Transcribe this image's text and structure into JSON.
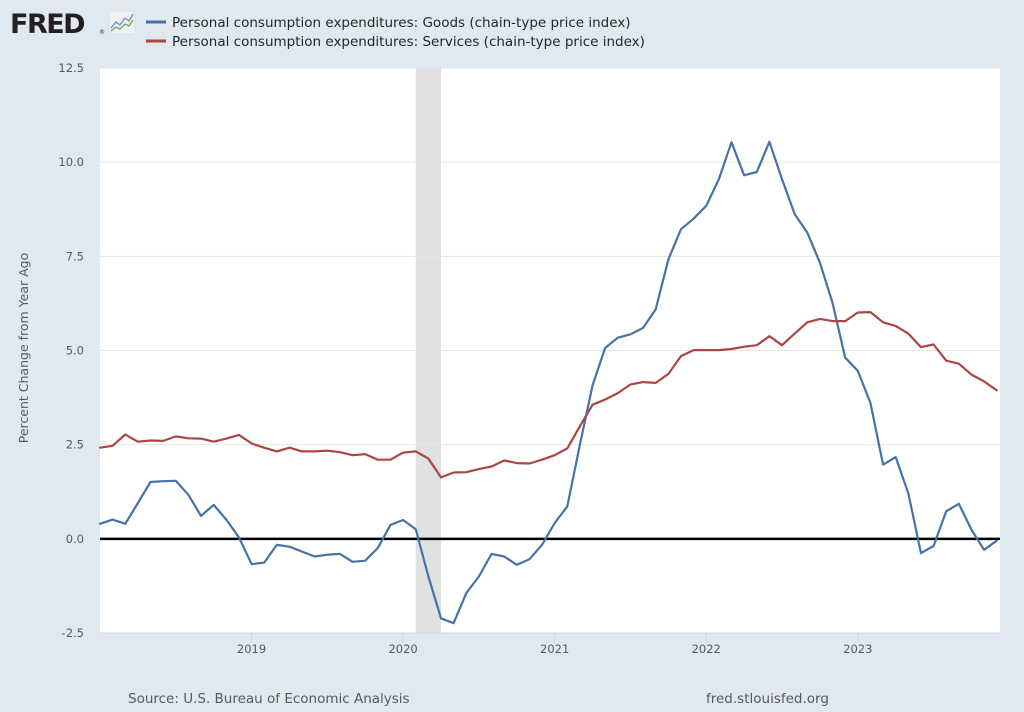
{
  "logo": {
    "text": "FRED",
    "registered_mark": "®",
    "icon": "fred-graph-icon"
  },
  "colors": {
    "background": "#e1e9f0",
    "plot_background": "#ffffff",
    "goods": "#4572a7",
    "services": "#aa4643",
    "recession": "#e1e1e1",
    "zero_line": "#000000",
    "grid": "#e6e6e6"
  },
  "footer": {
    "source": "Source: U.S. Bureau of Economic Analysis",
    "url": "fred.stlouisfed.org"
  },
  "chart_data": {
    "type": "line",
    "title": "",
    "xlabel": "",
    "ylabel": "Percent Change from Year Ago",
    "ylim": [
      -2.5,
      12.5
    ],
    "yticks": [
      "12.5",
      "10.0",
      "7.5",
      "5.0",
      "2.5",
      "0.0",
      "-2.5"
    ],
    "ytick_values": [
      12.5,
      10.0,
      7.5,
      5.0,
      2.5,
      0.0,
      -2.5
    ],
    "xlim": [
      "2018-01",
      "2023-12"
    ],
    "xticks": [
      "2019",
      "2020",
      "2021",
      "2022",
      "2023"
    ],
    "grid": true,
    "legend_placement": "top-left",
    "x": [
      "2018-01",
      "2018-02",
      "2018-03",
      "2018-04",
      "2018-05",
      "2018-06",
      "2018-07",
      "2018-08",
      "2018-09",
      "2018-10",
      "2018-11",
      "2018-12",
      "2019-01",
      "2019-02",
      "2019-03",
      "2019-04",
      "2019-05",
      "2019-06",
      "2019-07",
      "2019-08",
      "2019-09",
      "2019-10",
      "2019-11",
      "2019-12",
      "2020-01",
      "2020-02",
      "2020-03",
      "2020-04",
      "2020-05",
      "2020-06",
      "2020-07",
      "2020-08",
      "2020-09",
      "2020-10",
      "2020-11",
      "2020-12",
      "2021-01",
      "2021-02",
      "2021-03",
      "2021-04",
      "2021-05",
      "2021-06",
      "2021-07",
      "2021-08",
      "2021-09",
      "2021-10",
      "2021-11",
      "2021-12",
      "2022-01",
      "2022-02",
      "2022-03",
      "2022-04",
      "2022-05",
      "2022-06",
      "2022-07",
      "2022-08",
      "2022-09",
      "2022-10",
      "2022-11",
      "2022-12",
      "2023-01",
      "2023-02",
      "2023-03",
      "2023-04",
      "2023-05",
      "2023-06",
      "2023-07",
      "2023-08",
      "2023-09",
      "2023-10",
      "2023-11",
      "2023-12"
    ],
    "series": [
      {
        "name": "Personal consumption expenditures: Goods (chain-type price index)",
        "color": "#4572a7",
        "values": [
          0.4,
          0.51,
          0.4,
          0.95,
          1.51,
          1.53,
          1.54,
          1.17,
          0.61,
          0.9,
          0.51,
          0.04,
          -0.67,
          -0.63,
          -0.16,
          -0.21,
          -0.34,
          -0.47,
          -0.42,
          -0.4,
          -0.61,
          -0.58,
          -0.24,
          0.37,
          0.5,
          0.25,
          -1.0,
          -2.11,
          -2.24,
          -1.44,
          -1.0,
          -0.4,
          -0.47,
          -0.69,
          -0.54,
          -0.16,
          0.42,
          0.86,
          2.5,
          4.08,
          5.07,
          5.34,
          5.43,
          5.6,
          6.09,
          7.42,
          8.22,
          8.5,
          8.84,
          9.55,
          10.53,
          9.65,
          9.74,
          10.54,
          9.55,
          8.62,
          8.13,
          7.33,
          6.27,
          4.81,
          4.46,
          3.61,
          1.97,
          2.17,
          1.21,
          -0.38,
          -0.19,
          0.73,
          0.93,
          0.24,
          -0.29,
          -0.05
        ]
      },
      {
        "name": "Personal consumption expenditures: Services (chain-type price index)",
        "color": "#aa4643",
        "values": [
          2.42,
          2.47,
          2.77,
          2.58,
          2.61,
          2.6,
          2.72,
          2.67,
          2.66,
          2.58,
          2.66,
          2.76,
          2.53,
          2.42,
          2.32,
          2.42,
          2.32,
          2.32,
          2.34,
          2.3,
          2.22,
          2.25,
          2.1,
          2.1,
          2.29,
          2.32,
          2.13,
          1.63,
          1.76,
          1.77,
          1.85,
          1.92,
          2.08,
          2.01,
          2.0,
          2.1,
          2.22,
          2.4,
          2.99,
          3.56,
          3.7,
          3.87,
          4.1,
          4.16,
          4.14,
          4.38,
          4.85,
          5.01,
          5.01,
          5.01,
          5.04,
          5.1,
          5.14,
          5.38,
          5.14,
          5.45,
          5.75,
          5.84,
          5.78,
          5.78,
          6.01,
          6.02,
          5.75,
          5.65,
          5.45,
          5.09,
          5.16,
          4.73,
          4.65,
          4.36,
          4.18,
          3.94
        ]
      }
    ],
    "recessions": [
      {
        "start": "2020-02",
        "end": "2020-04"
      }
    ],
    "reference_line": {
      "y": 0.0
    }
  }
}
